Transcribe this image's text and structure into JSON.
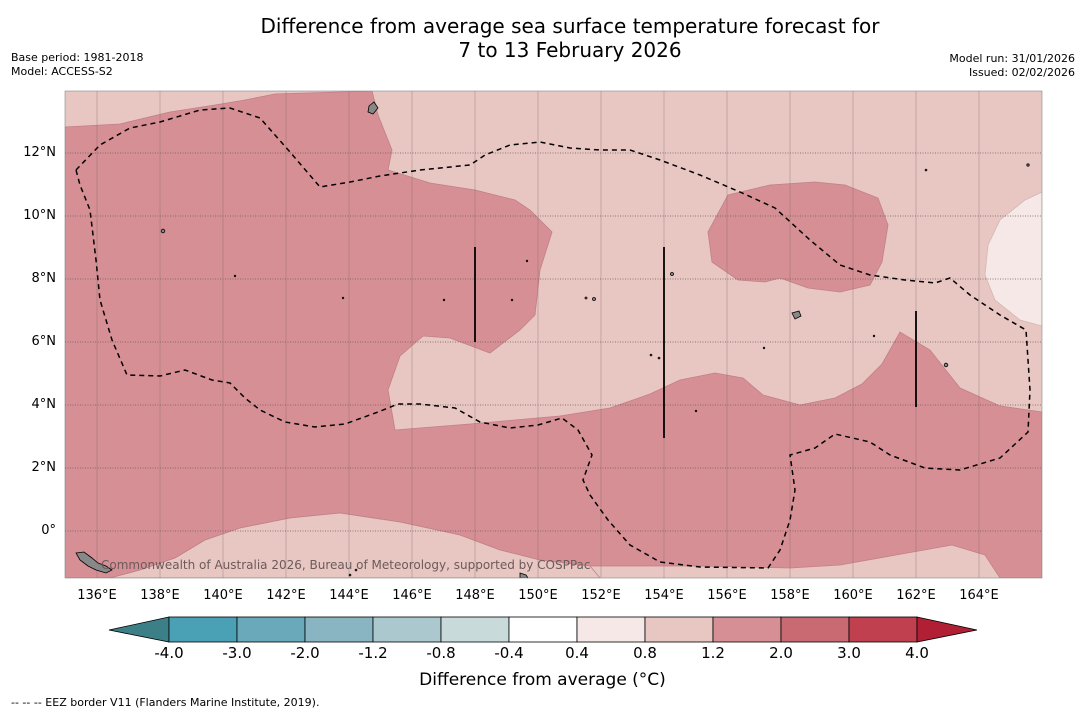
{
  "title": {
    "line1": "Difference from average sea surface temperature forecast for",
    "line2": "7 to 13 February 2026"
  },
  "meta": {
    "base_period": "Base period: 1981-2018",
    "model": "Model: ACCESS-S2",
    "model_run": "Model run: 31/01/2026",
    "issued": "Issued: 02/02/2026"
  },
  "map": {
    "lon_ticks": [
      "136°E",
      "138°E",
      "140°E",
      "142°E",
      "144°E",
      "146°E",
      "148°E",
      "150°E",
      "152°E",
      "154°E",
      "156°E",
      "158°E",
      "160°E",
      "162°E",
      "164°E"
    ],
    "lat_ticks": [
      "12°N",
      "10°N",
      "8°N",
      "6°N",
      "4°N",
      "2°N",
      "0°"
    ],
    "copyright": "Commonwealth of Australia 2026, Bureau of Meteorology, supported by COSPPac"
  },
  "colorbar": {
    "title": "Difference from average (°C)",
    "labels": [
      "-4.0",
      "-3.0",
      "-2.0",
      "-1.2",
      "-0.8",
      "-0.4",
      "0.4",
      "0.8",
      "1.2",
      "2.0",
      "3.0",
      "4.0"
    ],
    "colors": {
      "below": "#3d7f86",
      "bins": [
        "#4aa0b4",
        "#69a9b9",
        "#89b5c2",
        "#aac8cd",
        "#c9dadb",
        "#ffffff",
        "#f5e8e6",
        "#e8c6c1",
        "#d68f95",
        "#c96a72",
        "#c0404f"
      ],
      "above": "#b01f33"
    }
  },
  "legend": {
    "eez_note": "--  --  -- EEZ border V11 (Flanders Marine Institute, 2019)."
  }
}
